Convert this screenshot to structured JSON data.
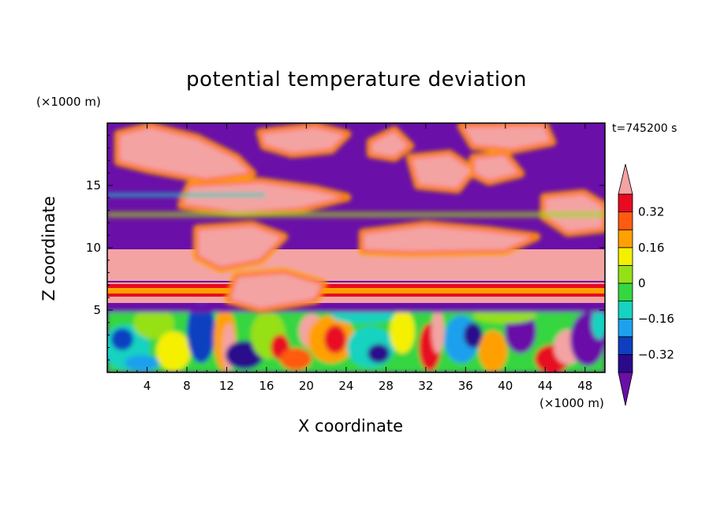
{
  "chart_data": {
    "type": "heatmap",
    "title": "potential temperature deviation",
    "xlabel": "X coordinate",
    "ylabel": "Z coordinate",
    "x_unit": "(×1000 m)",
    "y_unit": "(×1000 m)",
    "time_label": "t=745200 s",
    "xlim": [
      0,
      50
    ],
    "ylim": [
      0,
      20
    ],
    "x_ticks": [
      4,
      8,
      12,
      16,
      20,
      24,
      28,
      32,
      36,
      40,
      44,
      48
    ],
    "y_ticks": [
      5,
      10,
      15
    ],
    "colorbar": {
      "levels": [
        -0.4,
        -0.32,
        -0.24,
        -0.16,
        -0.08,
        0,
        0.08,
        0.16,
        0.24,
        0.32,
        0.4
      ],
      "labels": [
        "0.32",
        "0.16",
        "0",
        "−0.16",
        "−0.32"
      ],
      "label_values": [
        0.32,
        0.16,
        0,
        -0.16,
        -0.32
      ],
      "colors": [
        "#6a0fa8",
        "#2a0a8c",
        "#0e3fc0",
        "#1fa0ee",
        "#17d2c0",
        "#36d640",
        "#96e018",
        "#f4f000",
        "#ffa000",
        "#ff5a10",
        "#e80a20",
        "#f4a3a3"
      ],
      "extend": "both"
    },
    "field_description_regions": [
      {
        "z_range": [
          14,
          20
        ],
        "dominant": "alternating pink (positive) and purple (negative) blobs"
      },
      {
        "z_range": [
          9,
          14
        ],
        "dominant": "purple negative band with pink patches"
      },
      {
        "z_range": [
          6,
          9
        ],
        "dominant": "pink positive layer with thin orange-red stripe near z=6.5"
      },
      {
        "z_range": [
          0,
          5
        ],
        "dominant": "turbulent eddies mixing green, cyan, yellow, red and purple"
      }
    ]
  }
}
